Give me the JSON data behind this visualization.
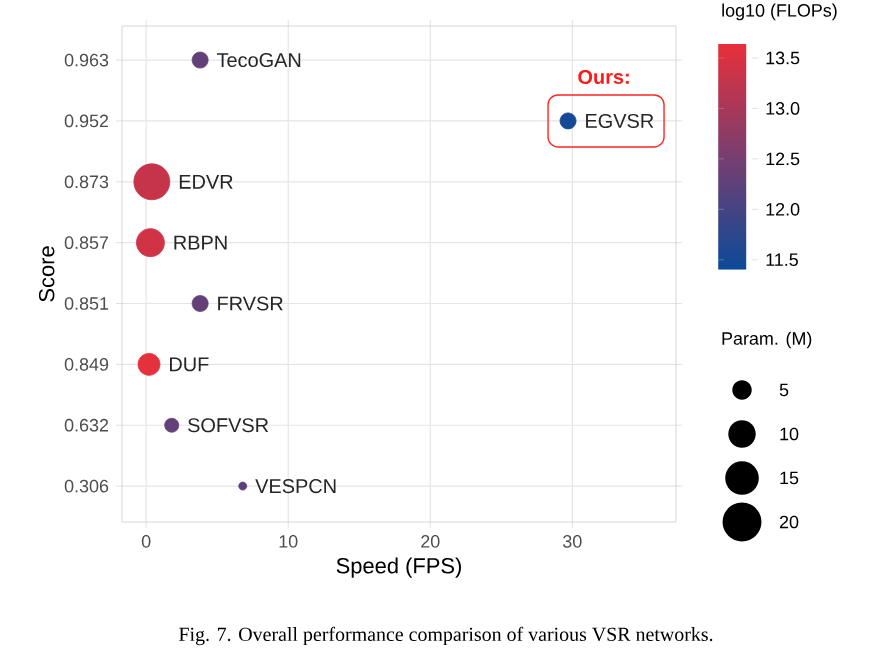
{
  "chart_data": {
    "type": "bubble",
    "orientation": "horizontal",
    "xlabel": "Speed (FPS)",
    "ylabel": "Score",
    "categories": [
      "0.963",
      "0.952",
      "0.873",
      "0.857",
      "0.851",
      "0.849",
      "0.632",
      "0.306"
    ],
    "xlim": [
      -1.7,
      37.3
    ],
    "xticks": [
      0,
      10,
      20,
      30
    ],
    "grid": true,
    "legend": "right",
    "clabel": "log10 (FLOPs)",
    "clim": [
      11.4,
      13.64
    ],
    "cticks": [
      11.5,
      {
        "value": 12,
        "label": "12.0"
      },
      12.5,
      {
        "value": 13,
        "label": "13.0"
      },
      13.5
    ],
    "legend_title": "Param. (M)",
    "size_legend": [
      5,
      10,
      15,
      20
    ],
    "series": [
      {
        "name": "TecoGAN",
        "values": [
          3.8,
          null,
          null,
          null,
          null,
          null,
          null,
          null
        ],
        "sizes": [
          3.4,
          null,
          null,
          null,
          null,
          null,
          null,
          null
        ],
        "cvalues": [
          12.3,
          null,
          null,
          null,
          null,
          null,
          null,
          null
        ]
      },
      {
        "name": "EGVSR",
        "values": [
          null,
          29.7,
          null,
          null,
          null,
          null,
          null,
          null
        ],
        "sizes": [
          null,
          3.4,
          null,
          null,
          null,
          null,
          null,
          null
        ],
        "cvalues": [
          null,
          11.5,
          null,
          null,
          null,
          null,
          null,
          null
        ]
      },
      {
        "name": "EDVR",
        "values": [
          null,
          null,
          0.4,
          null,
          null,
          null,
          null,
          null
        ],
        "sizes": [
          null,
          null,
          17.2,
          null,
          null,
          null,
          null,
          null
        ],
        "cvalues": [
          null,
          null,
          13.3,
          null,
          null,
          null,
          null,
          null
        ]
      },
      {
        "name": "RBPN",
        "values": [
          null,
          null,
          null,
          0.3,
          null,
          null,
          null,
          null
        ],
        "sizes": [
          null,
          null,
          null,
          10.4,
          null,
          null,
          null,
          null
        ],
        "cvalues": [
          null,
          null,
          null,
          13.4,
          null,
          null,
          null,
          null
        ]
      },
      {
        "name": "FRVSR",
        "values": [
          null,
          null,
          null,
          null,
          3.8,
          null,
          null,
          null
        ],
        "sizes": [
          null,
          null,
          null,
          null,
          3.4,
          null,
          null,
          null
        ],
        "cvalues": [
          null,
          null,
          null,
          null,
          12.3,
          null,
          null,
          null
        ]
      },
      {
        "name": "DUF",
        "values": [
          null,
          null,
          null,
          null,
          null,
          0.2,
          null,
          null
        ],
        "sizes": [
          null,
          null,
          null,
          null,
          null,
          6.4,
          null,
          null
        ],
        "cvalues": [
          null,
          null,
          null,
          null,
          null,
          13.6,
          null,
          null
        ]
      },
      {
        "name": "SOFVSR",
        "values": [
          null,
          null,
          null,
          null,
          null,
          null,
          1.8,
          null
        ],
        "sizes": [
          null,
          null,
          null,
          null,
          null,
          null,
          2.6,
          null
        ],
        "cvalues": [
          null,
          null,
          null,
          null,
          null,
          null,
          12.3,
          null
        ]
      },
      {
        "name": "VESPCN",
        "values": [
          null,
          null,
          null,
          null,
          null,
          null,
          null,
          6.8
        ],
        "sizes": [
          null,
          null,
          null,
          null,
          null,
          null,
          null,
          0.85
        ],
        "cvalues": [
          null,
          null,
          null,
          null,
          null,
          null,
          null,
          12.2
        ]
      }
    ],
    "annotations": [
      {
        "text": "Ours:",
        "x": 29.7,
        "y": "0.952"
      },
      "Fig. 7.   Overall performance comparison of various VSR networks."
    ]
  }
}
